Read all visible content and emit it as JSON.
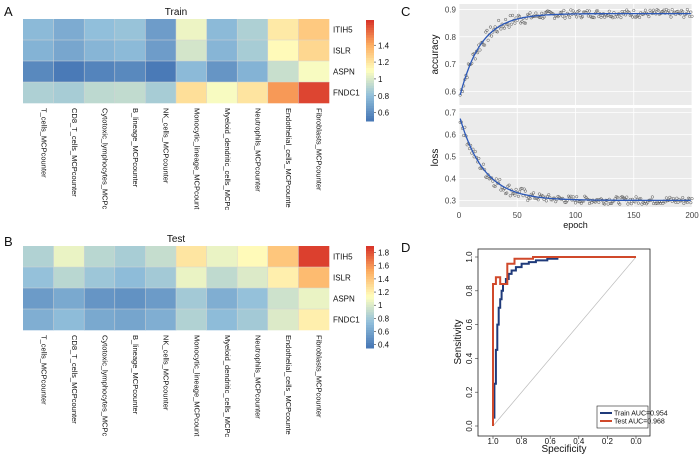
{
  "chart_data": [
    {
      "panel": "A",
      "type": "heatmap",
      "title": "Train",
      "rows": [
        "ITIH5",
        "ISLR",
        "ASPN",
        "FNDC1"
      ],
      "columns": [
        "T_cells_MCPcounter",
        "CD8_T_cells_MCPcounter",
        "Cytotoxic_lymphocytes_MCPc",
        "B_lineage_MCPcounter",
        "NK_cells_MCPcounter",
        "Monocytic_lineage_MCPcount",
        "Myeloid_dendritic_cells_MCPc",
        "Neutrophils_MCPcounter",
        "Endothelial_cells_MCPcounte",
        "Fibroblasts_MCPcounter"
      ],
      "values": [
        [
          0.78,
          0.72,
          0.8,
          0.82,
          0.66,
          1.05,
          0.78,
          0.88,
          1.18,
          1.3
        ],
        [
          0.75,
          0.7,
          0.76,
          0.78,
          0.66,
          0.98,
          0.76,
          0.86,
          1.12,
          1.25
        ],
        [
          0.58,
          0.52,
          0.56,
          0.58,
          0.52,
          0.78,
          0.63,
          0.75,
          0.95,
          1.08
        ],
        [
          0.88,
          0.86,
          0.92,
          0.93,
          0.86,
          1.22,
          1.08,
          1.2,
          1.45,
          1.65
        ]
      ],
      "legend_ticks": [
        1.4,
        1.2,
        1,
        0.8,
        0.6
      ],
      "range": [
        0.5,
        1.7
      ]
    },
    {
      "panel": "B",
      "type": "heatmap",
      "title": "Test",
      "rows": [
        "ITIH5",
        "ISLR",
        "ASPN",
        "FNDC1"
      ],
      "columns": [
        "T_cells_MCPcounter",
        "CD8_T_cells_MCPcounter",
        "Cytotoxic_lymphocytes_MCPc",
        "B_lineage_MCPcounter",
        "NK_cells_MCPcounter",
        "Monocytic_lineage_MCPcount",
        "Myeloid_dendritic_cells_MCPc",
        "Neutrophils_MCPcounter",
        "Endothelial_cells_MCPcounte",
        "Fibroblasts_MCPcounter"
      ],
      "values": [
        [
          0.85,
          1.05,
          0.88,
          0.82,
          0.92,
          1.25,
          1.05,
          1.15,
          1.4,
          1.85
        ],
        [
          0.75,
          0.88,
          0.78,
          0.72,
          0.8,
          1.05,
          0.9,
          1.0,
          1.2,
          1.45
        ],
        [
          0.55,
          0.62,
          0.52,
          0.5,
          0.55,
          0.8,
          0.65,
          0.75,
          0.95,
          1.05
        ],
        [
          0.65,
          0.72,
          0.62,
          0.6,
          0.65,
          0.85,
          0.72,
          0.8,
          1.0,
          1.2
        ]
      ],
      "legend_ticks": [
        1.8,
        1.6,
        1.4,
        1.2,
        1,
        0.8,
        0.6,
        0.4
      ],
      "range": [
        0.35,
        1.9
      ]
    },
    {
      "panel": "C",
      "type": "scatter",
      "xlabel": "epoch",
      "xlim": [
        0,
        200
      ],
      "xticks": [
        0,
        50,
        100,
        150,
        200
      ],
      "subplots": [
        {
          "ylabel": "accuracy",
          "ylim": [
            0.55,
            0.92
          ],
          "yticks": [
            0.6,
            0.7,
            0.8,
            0.9
          ],
          "model": {
            "start": 0.57,
            "end": 0.885,
            "rate": 0.055
          }
        },
        {
          "ylabel": "loss",
          "ylim": [
            0.27,
            0.72
          ],
          "yticks": [
            0.3,
            0.4,
            0.5,
            0.6,
            0.7
          ],
          "model": {
            "start": 0.69,
            "end": 0.3,
            "rate": 0.048
          }
        }
      ]
    },
    {
      "panel": "D",
      "type": "line",
      "xlabel": "Specificity",
      "ylabel": "Sensitivity",
      "xticks": [
        1.0,
        0.8,
        0.6,
        0.4,
        0.2,
        0.0
      ],
      "yticks": [
        0.0,
        0.2,
        0.4,
        0.6,
        0.8,
        1.0
      ],
      "series": [
        {
          "name": "Train AUC=0.954",
          "color": "#1f3a7a",
          "spec": [
            1.0,
            1.0,
            0.99,
            0.99,
            0.98,
            0.98,
            0.97,
            0.97,
            0.96,
            0.96,
            0.95,
            0.95,
            0.94,
            0.94,
            0.93,
            0.93,
            0.91,
            0.91,
            0.89,
            0.89,
            0.87,
            0.87,
            0.84,
            0.84,
            0.8,
            0.8,
            0.75,
            0.75,
            0.7,
            0.7,
            0.62,
            0.62,
            0.55,
            0.55,
            0.0
          ],
          "sens": [
            0.0,
            0.05,
            0.05,
            0.25,
            0.25,
            0.45,
            0.45,
            0.6,
            0.6,
            0.7,
            0.7,
            0.75,
            0.75,
            0.8,
            0.8,
            0.84,
            0.84,
            0.87,
            0.87,
            0.9,
            0.9,
            0.92,
            0.92,
            0.94,
            0.94,
            0.96,
            0.96,
            0.97,
            0.97,
            0.98,
            0.98,
            0.99,
            0.99,
            1.0,
            1.0
          ]
        },
        {
          "name": "Test AUC=0.968",
          "color": "#d0492b",
          "spec": [
            1.0,
            1.0,
            0.98,
            0.98,
            0.95,
            0.95,
            0.9,
            0.9,
            0.85,
            0.85,
            0.72,
            0.72,
            0.0
          ],
          "sens": [
            0.0,
            0.84,
            0.84,
            0.88,
            0.88,
            0.84,
            0.84,
            0.96,
            0.96,
            0.99,
            0.99,
            1.0,
            1.0
          ]
        }
      ]
    }
  ],
  "labels": {
    "panel_a": "A",
    "panel_b": "B",
    "panel_c": "C",
    "panel_d": "D"
  }
}
